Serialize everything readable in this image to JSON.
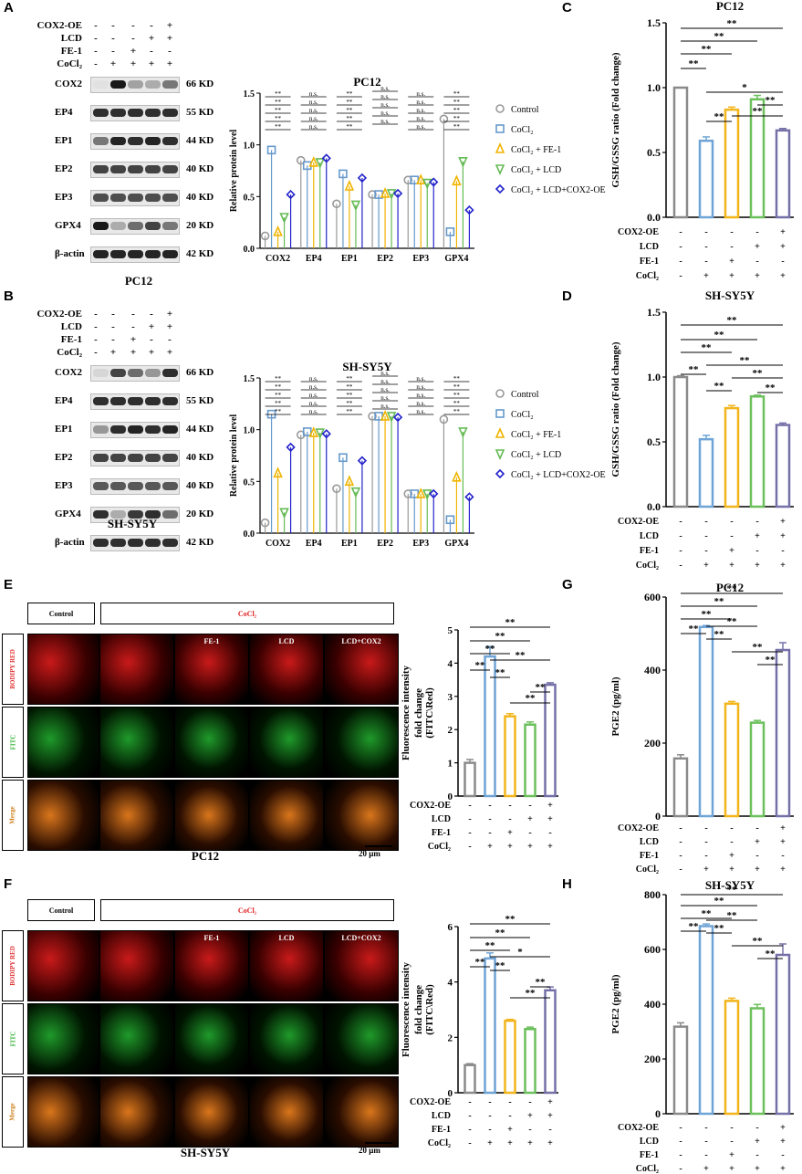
{
  "panel_letters": [
    "A",
    "B",
    "C",
    "D",
    "E",
    "F",
    "G",
    "H"
  ],
  "treatments": {
    "rows": [
      "COX2-OE",
      "LCD",
      "FE-1",
      "CoCl₂"
    ],
    "signs": [
      [
        "-",
        "-",
        "-",
        "-",
        "+"
      ],
      [
        "-",
        "-",
        "-",
        "+",
        "+"
      ],
      [
        "-",
        "-",
        "+",
        "-",
        "-"
      ],
      [
        "-",
        "+",
        "+",
        "+",
        "+"
      ]
    ]
  },
  "blots": {
    "proteins": [
      "COX2",
      "EP4",
      "EP1",
      "EP2",
      "EP3",
      "GPX4",
      "β-actin"
    ],
    "kd": [
      "66 KD",
      "55 KD",
      "44 KD",
      "40 KD",
      "40 KD",
      "20 KD",
      "42 KD"
    ],
    "cell_A": "PC12",
    "cell_B": "SH-SY5Y"
  },
  "legend": {
    "items": [
      "Control",
      "CoCl₂",
      "CoCl₂ + FE-1",
      "CoCl₂ + LCD",
      "CoCl₂ + LCD+COX2-OE"
    ],
    "colors": [
      "#999999",
      "#6699cc",
      "#f0b400",
      "#66bb55",
      "#2222cc"
    ]
  },
  "colors": {
    "bars": [
      "#8a8a8a",
      "#6fa4d6",
      "#f2b51b",
      "#6cc05c",
      "#7570a8"
    ]
  },
  "sig": {
    "double": "**",
    "single": "*",
    "ns": "n.s."
  },
  "microscopy": {
    "header_control": "Control",
    "header_cocl2": "CoCl₂",
    "columns": [
      "",
      "",
      "FE-1",
      "LCD",
      "LCD+COX2"
    ],
    "rows": [
      "BODIPY RED",
      "FITC",
      "Merge"
    ],
    "scale_bar": "20 μm",
    "cell_E": "PC12",
    "cell_F": "SH-SY5Y"
  },
  "chart_data": [
    {
      "type": "scatter",
      "panel": "A",
      "title": "PC12",
      "ylabel": "Relative protein level",
      "ylim": [
        0,
        1.5
      ],
      "yticks": [
        "0.0",
        "0.5",
        "1.0",
        "1.5"
      ],
      "categories": [
        "COX2",
        "EP4",
        "EP1",
        "EP2",
        "EP3",
        "GPX4"
      ],
      "series": [
        {
          "name": "Control",
          "values": [
            0.12,
            0.85,
            0.43,
            0.52,
            0.66,
            1.25
          ]
        },
        {
          "name": "CoCl₂",
          "values": [
            0.95,
            0.8,
            0.72,
            0.52,
            0.66,
            0.16
          ]
        },
        {
          "name": "CoCl₂ + FE-1",
          "values": [
            0.16,
            0.83,
            0.6,
            0.53,
            0.66,
            0.65
          ]
        },
        {
          "name": "CoCl₂ + LCD",
          "values": [
            0.3,
            0.83,
            0.42,
            0.53,
            0.63,
            0.84
          ]
        },
        {
          "name": "CoCl₂ + LCD+COX2-OE",
          "values": [
            0.52,
            0.87,
            0.68,
            0.53,
            0.64,
            0.37
          ]
        }
      ]
    },
    {
      "type": "scatter",
      "panel": "B",
      "title": "SH-SY5Y",
      "ylabel": "Relative protein level",
      "ylim": [
        0,
        1.5
      ],
      "yticks": [
        "0.0",
        "0.5",
        "1.0",
        "1.5"
      ],
      "categories": [
        "COX2",
        "EP4",
        "EP1",
        "EP2",
        "EP3",
        "GPX4"
      ],
      "series": [
        {
          "name": "Control",
          "values": [
            0.1,
            0.95,
            0.43,
            1.13,
            0.38,
            1.1
          ]
        },
        {
          "name": "CoCl₂",
          "values": [
            1.15,
            0.98,
            0.73,
            1.13,
            0.38,
            0.13
          ]
        },
        {
          "name": "CoCl₂ + FE-1",
          "values": [
            0.58,
            0.97,
            0.5,
            1.13,
            0.38,
            0.54
          ]
        },
        {
          "name": "CoCl₂ + LCD",
          "values": [
            0.2,
            0.97,
            0.4,
            1.13,
            0.38,
            0.98
          ]
        },
        {
          "name": "CoCl₂ + LCD+COX2-OE",
          "values": [
            0.83,
            0.96,
            0.7,
            1.12,
            0.38,
            0.35
          ]
        }
      ]
    },
    {
      "type": "bar",
      "panel": "C",
      "title": "PC12",
      "ylabel": "GSH/GSSG ratio (Fold change)",
      "ylim": [
        0,
        1.5
      ],
      "yticks": [
        "0.0",
        "0.5",
        "1.0",
        "1.5"
      ],
      "values": [
        1.0,
        0.59,
        0.83,
        0.91,
        0.67
      ],
      "errors": [
        0.0,
        0.03,
        0.02,
        0.03,
        0.015
      ]
    },
    {
      "type": "bar",
      "panel": "D",
      "title": "SH-SY5Y",
      "ylabel": "GSH/GSSG ratio (Fold change)",
      "ylim": [
        0,
        1.5
      ],
      "yticks": [
        "0.0",
        "0.5",
        "1.0",
        "1.5"
      ],
      "values": [
        1.0,
        0.52,
        0.76,
        0.85,
        0.63
      ],
      "errors": [
        0.01,
        0.03,
        0.02,
        0.01,
        0.015
      ]
    },
    {
      "type": "bar",
      "panel": "E",
      "ylabel": "Fluorescence intensity fold change (FITC\\Red)",
      "ylim": [
        0,
        5
      ],
      "yticks": [
        "0",
        "1",
        "2",
        "3",
        "4",
        "5"
      ],
      "values": [
        1.0,
        4.2,
        2.4,
        2.15,
        3.35
      ],
      "errors": [
        0.1,
        0.3,
        0.08,
        0.08,
        0.06
      ]
    },
    {
      "type": "bar",
      "panel": "F",
      "ylabel": "Fluorescence intensity fold change (FITC\\Red)",
      "ylim": [
        0,
        6
      ],
      "yticks": [
        "0",
        "2",
        "4",
        "6"
      ],
      "values": [
        1.0,
        4.85,
        2.6,
        2.3,
        3.7
      ],
      "errors": [
        0.05,
        0.2,
        0.05,
        0.07,
        0.12
      ]
    },
    {
      "type": "bar",
      "panel": "G",
      "title": "PC12",
      "ylabel": "PGE2 (pg/ml)",
      "ylim": [
        0,
        600
      ],
      "yticks": [
        "0",
        "200",
        "400",
        "600"
      ],
      "values": [
        158,
        518,
        308,
        256,
        455
      ],
      "errors": [
        10,
        4,
        6,
        6,
        20
      ]
    },
    {
      "type": "bar",
      "panel": "H",
      "title": "SH-SY5Y",
      "ylabel": "PGE2 (pg/ml)",
      "ylim": [
        0,
        800
      ],
      "yticks": [
        "0",
        "200",
        "400",
        "600",
        "800"
      ],
      "values": [
        318,
        685,
        412,
        385,
        580
      ],
      "errors": [
        14,
        8,
        10,
        14,
        40
      ]
    }
  ]
}
